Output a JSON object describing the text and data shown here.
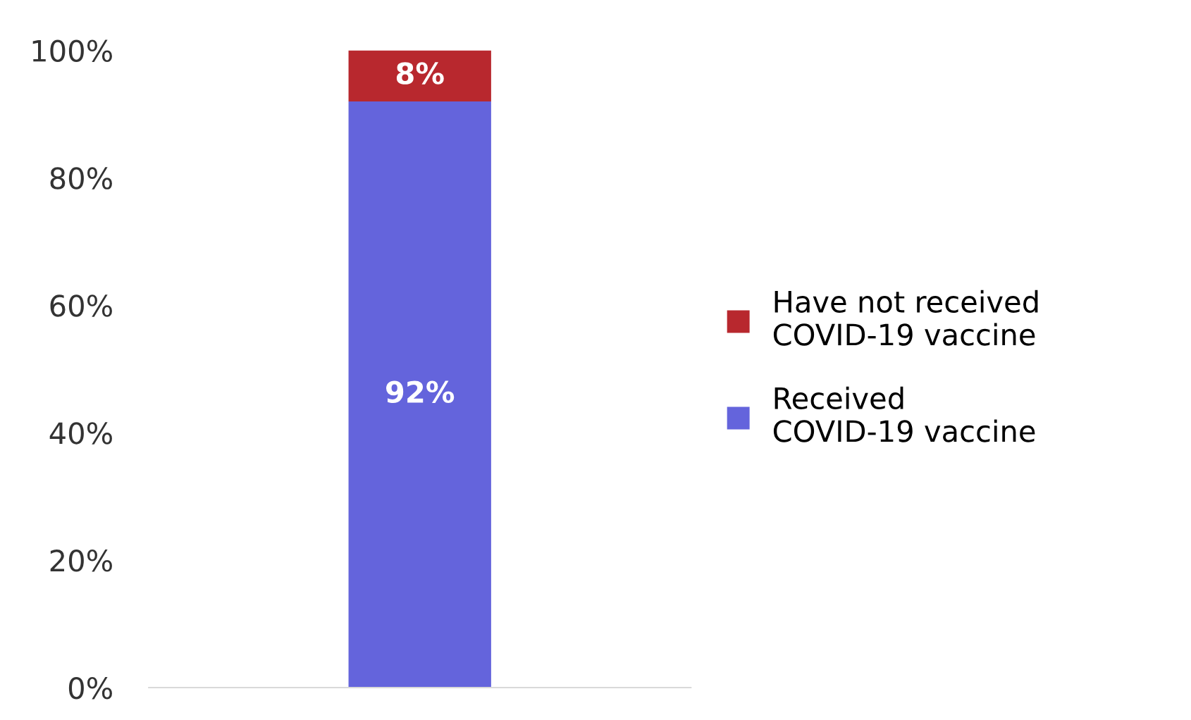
{
  "chart_data": {
    "type": "bar",
    "stacked": true,
    "categories": [
      null
    ],
    "series": [
      {
        "name": "Received COVID-19 vaccine",
        "color": "#6464dc",
        "values": [
          92
        ],
        "value_labels": [
          "92%"
        ]
      },
      {
        "name": "Have not received COVID-19 vaccine",
        "color": "#b8282e",
        "values": [
          8
        ],
        "value_labels": [
          "8%"
        ]
      }
    ],
    "ylim": [
      0,
      100
    ],
    "yticks": [
      {
        "value": 0,
        "label": "0%"
      },
      {
        "value": 20,
        "label": "20%"
      },
      {
        "value": 40,
        "label": "40%"
      },
      {
        "value": 60,
        "label": "60%"
      },
      {
        "value": 80,
        "label": "80%"
      },
      {
        "value": 100,
        "label": "100%"
      }
    ],
    "grid": false,
    "legend": "right"
  }
}
